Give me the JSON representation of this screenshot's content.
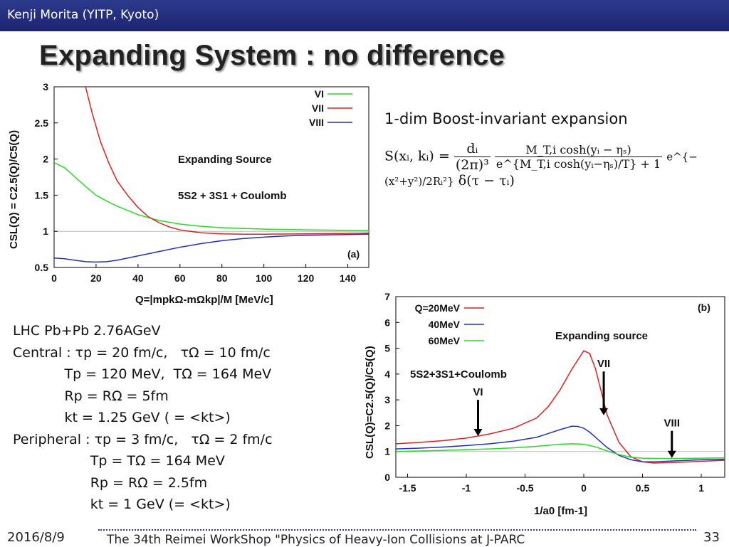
{
  "header": {
    "author": "Kenji Morita (YITP, Kyoto)"
  },
  "title": "Expanding System : no difference",
  "subtitle": "1-dim Boost-invariant expansion",
  "formula": {
    "lhs": "S(xᵢ, kᵢ) =",
    "frac1_num": "dᵢ",
    "frac1_den": "(2π)³",
    "frac2_num": "M_T,i cosh(yᵢ − ηₛ)",
    "frac2_den": "e^{M_T,i cosh(yᵢ−ηₛ)/T} + 1",
    "exp": "e^{−(x²+y²)/2Rᵢ²}",
    "delta": "δ(τ − τᵢ)"
  },
  "params": [
    "LHC Pb+Pb 2.76AGeV",
    "Central : τp = 20 fm/c,   τΩ = 10 fm/c",
    "            Tp = 120 MeV,  TΩ = 164 MeV",
    "            Rp = RΩ = 5fm",
    "            kt = 1.25 GeV ( = <kt>)",
    "Peripheral : τp = 3 fm/c,   τΩ = 2 fm/c",
    "                  Tp = TΩ = 164 MeV",
    "                  Rp = RΩ = 2.5fm",
    "                  kt = 1 GeV (= <kt>)"
  ],
  "footer": {
    "date": "2016/8/9",
    "event": "The 34th Reimei WorkShop \"Physics of Heavy-Ion Collisions at J-PARC",
    "page": "33"
  },
  "colors": {
    "green": "#22dd22",
    "red": "#e02020",
    "blue": "#2030c0",
    "header": "#2d3a8c"
  },
  "chart_data": [
    {
      "type": "line",
      "panel": "(a)",
      "title": "",
      "annotations": [
        "Expanding Source",
        "5S2 + 3S1 + Coulomb"
      ],
      "xlabel": "Q=|mpkΩ-mΩkp|/M [MeV/c]",
      "ylabel": "CSL(Q) = C2.5(Q)/C5(Q)",
      "xlim": [
        0,
        150
      ],
      "ylim": [
        0.5,
        3
      ],
      "xticks": [
        0,
        20,
        40,
        60,
        80,
        100,
        120,
        140
      ],
      "yticks": [
        0.5,
        1,
        1.5,
        2,
        2.5,
        3
      ],
      "ytick_labels": [
        "0.5",
        "1",
        "1.5",
        "2",
        "2.5",
        "3"
      ],
      "legend": [
        "VI",
        "VII",
        "VIII"
      ],
      "series": [
        {
          "name": "VI",
          "color": "#22dd22",
          "x": [
            0,
            5,
            10,
            15,
            20,
            25,
            30,
            40,
            50,
            60,
            70,
            80,
            90,
            100,
            120,
            150
          ],
          "y": [
            1.95,
            1.88,
            1.75,
            1.62,
            1.5,
            1.42,
            1.35,
            1.23,
            1.15,
            1.1,
            1.07,
            1.05,
            1.04,
            1.03,
            1.02,
            1.01
          ]
        },
        {
          "name": "VII",
          "color": "#e02020",
          "x": [
            15,
            18,
            22,
            26,
            30,
            35,
            40,
            45,
            50,
            55,
            60,
            70,
            80,
            90,
            100,
            120,
            150
          ],
          "y": [
            3.0,
            2.65,
            2.25,
            1.95,
            1.7,
            1.5,
            1.33,
            1.2,
            1.12,
            1.06,
            1.02,
            0.98,
            0.965,
            0.96,
            0.96,
            0.965,
            0.975
          ]
        },
        {
          "name": "VIII",
          "color": "#2030c0",
          "x": [
            0,
            5,
            10,
            15,
            20,
            25,
            30,
            40,
            50,
            60,
            70,
            80,
            90,
            100,
            110,
            120,
            150
          ],
          "y": [
            0.63,
            0.62,
            0.6,
            0.58,
            0.575,
            0.58,
            0.6,
            0.66,
            0.72,
            0.78,
            0.83,
            0.87,
            0.9,
            0.92,
            0.935,
            0.945,
            0.96
          ]
        }
      ]
    },
    {
      "type": "line",
      "panel": "(b)",
      "title": "",
      "annotations": [
        "Expanding source",
        "5S2+3S1+Coulomb",
        "VI",
        "VII",
        "VIII"
      ],
      "xlabel": "1/a0 [fm-1]",
      "ylabel": "CSL(Q)=C2.5(Q)/C5(Q)",
      "xlim": [
        -1.6,
        1.2
      ],
      "ylim": [
        0,
        7
      ],
      "xticks": [
        -1.5,
        -1,
        -0.5,
        0,
        0.5,
        1
      ],
      "xtick_labels": [
        "-1.5",
        "-1",
        "-0.5",
        "0",
        "0.5",
        "1"
      ],
      "yticks": [
        0,
        1,
        2,
        3,
        4,
        5,
        6,
        7
      ],
      "legend": [
        "Q=20MeV",
        "40MeV",
        "60MeV"
      ],
      "series": [
        {
          "name": "Q=20MeV",
          "color": "#e02020",
          "x": [
            -1.6,
            -1.4,
            -1.2,
            -1.0,
            -0.8,
            -0.6,
            -0.4,
            -0.3,
            -0.2,
            -0.1,
            0.0,
            0.05,
            0.1,
            0.15,
            0.2,
            0.3,
            0.4,
            0.5,
            0.6,
            0.8,
            1.0,
            1.2
          ],
          "y": [
            1.3,
            1.35,
            1.42,
            1.52,
            1.68,
            1.9,
            2.3,
            2.75,
            3.4,
            4.2,
            4.9,
            4.8,
            4.2,
            3.3,
            2.4,
            1.35,
            0.8,
            0.6,
            0.55,
            0.58,
            0.62,
            0.66
          ]
        },
        {
          "name": "40MeV",
          "color": "#2030c0",
          "x": [
            -1.6,
            -1.4,
            -1.2,
            -1.0,
            -0.8,
            -0.6,
            -0.4,
            -0.3,
            -0.2,
            -0.1,
            -0.05,
            0.0,
            0.05,
            0.1,
            0.2,
            0.3,
            0.4,
            0.5,
            0.6,
            0.8,
            1.0,
            1.2
          ],
          "y": [
            1.1,
            1.13,
            1.17,
            1.23,
            1.3,
            1.4,
            1.55,
            1.7,
            1.85,
            1.98,
            1.97,
            1.9,
            1.75,
            1.55,
            1.15,
            0.85,
            0.68,
            0.6,
            0.6,
            0.64,
            0.68,
            0.7
          ]
        },
        {
          "name": "60MeV",
          "color": "#22dd22",
          "x": [
            -1.6,
            -1.4,
            -1.2,
            -1.0,
            -0.8,
            -0.6,
            -0.4,
            -0.2,
            -0.1,
            0.0,
            0.1,
            0.2,
            0.3,
            0.4,
            0.5,
            0.6,
            0.8,
            1.0,
            1.2
          ],
          "y": [
            1.0,
            1.02,
            1.04,
            1.07,
            1.1,
            1.14,
            1.2,
            1.28,
            1.3,
            1.28,
            1.18,
            1.02,
            0.88,
            0.78,
            0.74,
            0.73,
            0.73,
            0.74,
            0.75
          ]
        }
      ]
    }
  ]
}
